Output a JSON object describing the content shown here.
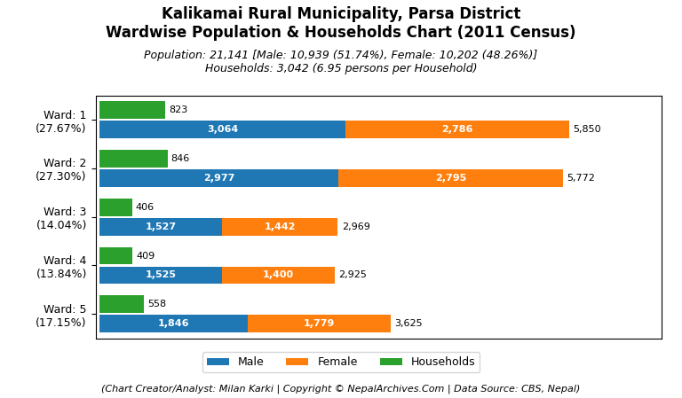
{
  "chart_data": {
    "type": "bar",
    "orientation": "horizontal",
    "title": [
      "Kalikamai Rural Municipality, Parsa District",
      "Wardwise Population & Households Chart (2011 Census)"
    ],
    "subtitle": [
      "Population: 21,141 [Male: 10,939 (51.74%), Female: 10,202 (48.26%)]",
      "Households: 3,042 (6.95 persons per Household)"
    ],
    "annotations": [
      {
        "text": "(Chart Creator/Analyst: Milan Karki | Copyright © NepalArchives.Com | Data Source: CBS, Nepal)"
      }
    ],
    "categories": [
      "Ward: 1\n(27.67%)",
      "Ward: 2\n(27.30%)",
      "Ward: 3\n(14.04%)",
      "Ward: 4\n(13.84%)",
      "Ward: 5\n(17.15%)"
    ],
    "series": [
      {
        "name": "Male",
        "stacked": true,
        "values": [
          3064,
          2977,
          1527,
          1525,
          1846
        ],
        "value_labels": [
          "3,064",
          "2,977",
          "1,527",
          "1,525",
          "1,846"
        ]
      },
      {
        "name": "Female",
        "stacked": true,
        "values": [
          2786,
          2795,
          1442,
          1400,
          1779
        ],
        "value_labels": [
          "2,786",
          "2,795",
          "1,442",
          "1,400",
          "1,779"
        ]
      },
      {
        "name": "Households",
        "stacked": false,
        "values": [
          823,
          846,
          406,
          409,
          558
        ],
        "value_labels": [
          "823",
          "846",
          "406",
          "409",
          "558"
        ]
      }
    ],
    "totals": [
      5850,
      5772,
      2969,
      2925,
      3625
    ],
    "total_labels": [
      "5,850",
      "5,772",
      "2,969",
      "2,925",
      "3,625"
    ],
    "xlim": [
      -50,
      7000
    ],
    "data_labels": true,
    "tick_labels": "y",
    "legend": "lower center",
    "grid": false
  }
}
